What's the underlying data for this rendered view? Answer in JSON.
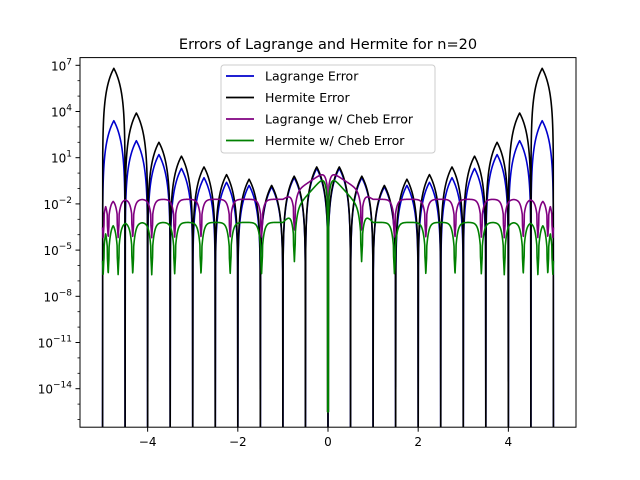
{
  "chart_data": {
    "type": "line",
    "title": "Errors of Lagrange and Hermite for n=20",
    "xlabel": "",
    "ylabel": "",
    "xlim": [
      -5.5,
      5.5
    ],
    "yscale": "log",
    "ylim_exponents": [
      -16.5,
      7.5
    ],
    "x_ticks": [
      -4,
      -2,
      0,
      2,
      4
    ],
    "x_tick_labels": [
      "−4",
      "−2",
      "0",
      "2",
      "4"
    ],
    "y_ticks": [
      7,
      4,
      1,
      -2,
      -5,
      -8,
      -11,
      -14
    ],
    "y_tick_labels": [
      {
        "base": "10",
        "exp": "7"
      },
      {
        "base": "10",
        "exp": "4"
      },
      {
        "base": "10",
        "exp": "1"
      },
      {
        "base": "10",
        "exp": "−2"
      },
      {
        "base": "10",
        "exp": "−5"
      },
      {
        "base": "10",
        "exp": "−8"
      },
      {
        "base": "10",
        "exp": "−11"
      },
      {
        "base": "10",
        "exp": "−14"
      }
    ],
    "grid": false,
    "legend_position": "top-center",
    "series": [
      {
        "name": "Lagrange Error",
        "color": "#0000cc",
        "kind": "equispaced",
        "peaks_log10": [
          3.4,
          2.1,
          1.2,
          0.3,
          -0.3,
          -0.6,
          -0.8,
          -0.9,
          -0.3,
          0.3
        ]
      },
      {
        "name": "Hermite Error",
        "color": "#000000",
        "kind": "equispaced",
        "peaks_log10": [
          6.8,
          3.9,
          2.0,
          1.1,
          0.4,
          -0.1,
          -0.4,
          -0.8,
          -0.2,
          0.4
        ]
      },
      {
        "name": "Lagrange w/ Cheb Error",
        "color": "#800080",
        "kind": "chebyshev",
        "level_log10": -1.7,
        "dip_depth": 1.6
      },
      {
        "name": "Hermite w/ Cheb Error",
        "color": "#008000",
        "kind": "chebyshev",
        "level_log10": -3.2,
        "dip_depth": 2.5
      }
    ]
  }
}
